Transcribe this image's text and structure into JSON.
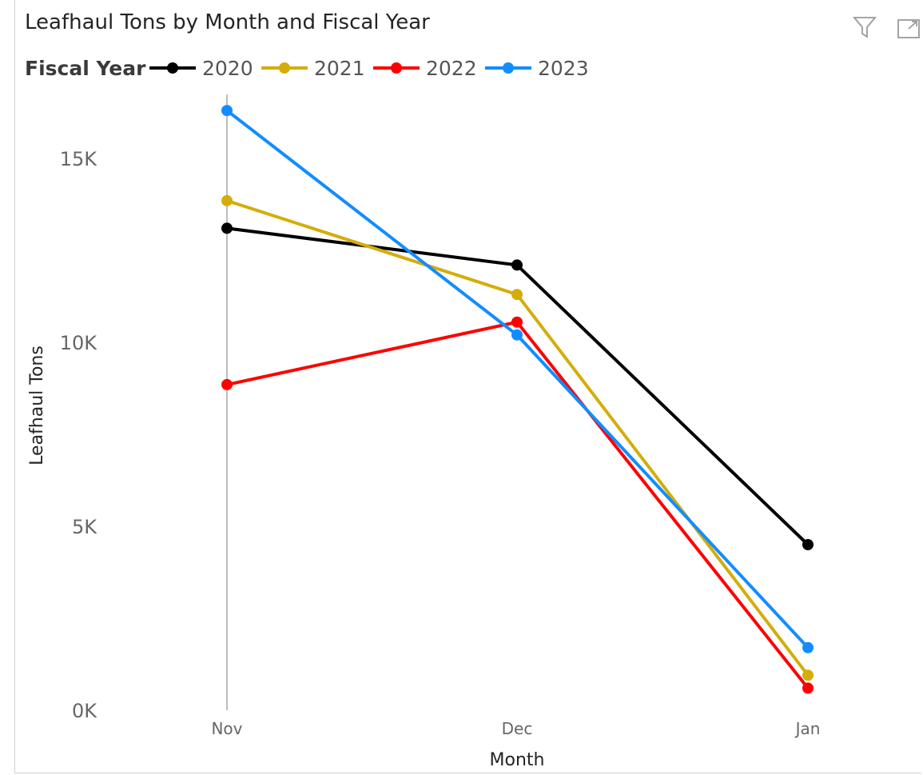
{
  "header": {
    "filter_icon": "filter-icon",
    "focus_icon": "focus-mode-icon"
  },
  "chart_data": {
    "type": "line",
    "title": "Leafhaul Tons by Month and Fiscal Year",
    "legend_title": "Fiscal Year",
    "legend_position": "top-left",
    "xlabel": "Month",
    "ylabel": "Leafhaul Tons",
    "categories": [
      "Nov",
      "Dec",
      "Jan"
    ],
    "ylim": [
      0,
      16500
    ],
    "yticks": [
      0,
      5000,
      10000,
      15000
    ],
    "ytick_labels": [
      "0K",
      "5K",
      "10K",
      "15K"
    ],
    "grid": false,
    "series": [
      {
        "name": "2020",
        "color": "#000000",
        "values": [
          13100,
          12100,
          4500
        ]
      },
      {
        "name": "2021",
        "color": "#D4AD0B",
        "values": [
          13850,
          11300,
          950
        ]
      },
      {
        "name": "2022",
        "color": "#FF0000",
        "values": [
          8850,
          10550,
          600
        ]
      },
      {
        "name": "2023",
        "color": "#118DFF",
        "values": [
          16300,
          10200,
          1700
        ]
      }
    ]
  }
}
